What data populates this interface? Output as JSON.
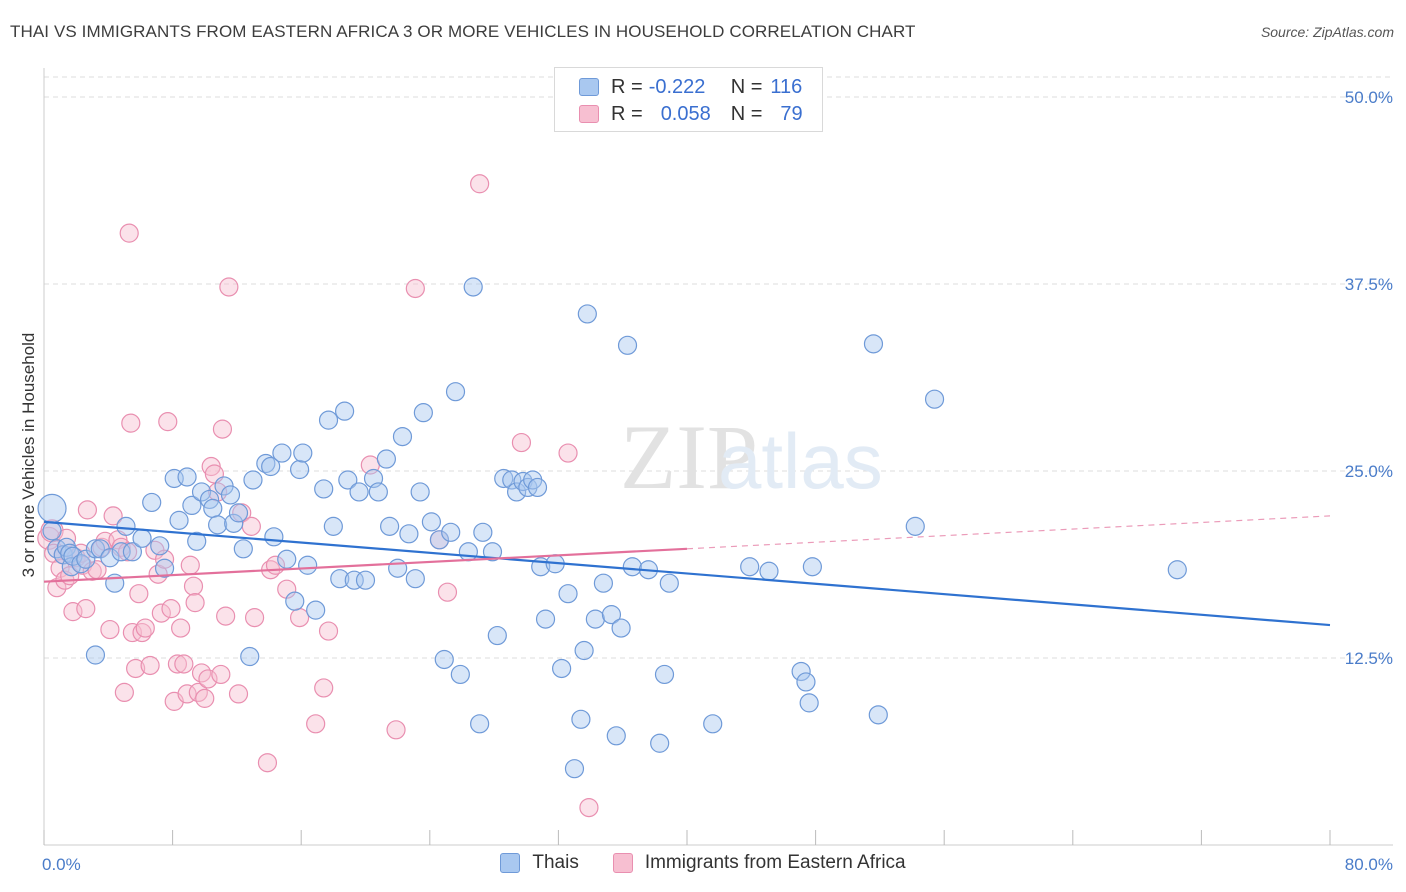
{
  "title": "THAI VS IMMIGRANTS FROM EASTERN AFRICA 3 OR MORE VEHICLES IN HOUSEHOLD CORRELATION CHART",
  "source": "Source: ZipAtlas.com",
  "watermark": {
    "zip": "ZIP",
    "atlas": "atlas"
  },
  "legend": {
    "rows": [
      {
        "r_label": "R =",
        "r_value": "-0.222",
        "n_label": "N =",
        "n_value": "116"
      },
      {
        "r_label": "R =",
        "r_value": "0.058",
        "n_label": "N =",
        "n_value": "79"
      }
    ]
  },
  "bottom_legend": {
    "series1": "Thais",
    "series2": "Immigrants from Eastern Africa"
  },
  "colors": {
    "blue_fill": "#a9c8f0",
    "blue_stroke": "#6f9ad8",
    "blue_line": "#2f72d0",
    "pink_fill": "#f7bfd1",
    "pink_stroke": "#e98fb0",
    "pink_line": "#e3709b",
    "tick": "#4a7cc9",
    "grid": "#dddddd"
  },
  "chart_data": {
    "type": "scatter",
    "title": "THAI VS IMMIGRANTS FROM EASTERN AFRICA 3 OR MORE VEHICLES IN HOUSEHOLD CORRELATION CHART",
    "xlabel": "",
    "ylabel": "3 or more Vehicles in Household",
    "xlim": [
      0,
      80
    ],
    "ylim": [
      0,
      50
    ],
    "x_tick_labels": [
      "0.0%",
      "80.0%"
    ],
    "y_ticks": [
      12.5,
      25.0,
      37.5,
      50.0
    ],
    "y_tick_labels": [
      "12.5%",
      "25.0%",
      "37.5%",
      "50.0%"
    ],
    "grid": "horizontal dashed",
    "series": [
      {
        "name": "Thais",
        "r": -0.222,
        "n": 116,
        "trend": {
          "x": [
            0,
            80
          ],
          "y": [
            21.6,
            14.7
          ],
          "dashed_from": null
        },
        "points": [
          [
            0.5,
            22.5
          ],
          [
            0.5,
            21
          ],
          [
            0.8,
            19.8
          ],
          [
            1.2,
            19.4
          ],
          [
            1.4,
            19.9
          ],
          [
            1.6,
            19.5
          ],
          [
            1.7,
            18.6
          ],
          [
            1.8,
            19.3
          ],
          [
            2.3,
            18.8
          ],
          [
            2.6,
            19.1
          ],
          [
            3.2,
            19.8
          ],
          [
            3.5,
            19.8
          ],
          [
            4.1,
            19.2
          ],
          [
            4.4,
            17.5
          ],
          [
            4.8,
            19.6
          ],
          [
            5.5,
            19.6
          ],
          [
            3.2,
            12.7
          ],
          [
            5.1,
            21.3
          ],
          [
            6.1,
            20.5
          ],
          [
            6.7,
            22.9
          ],
          [
            7.2,
            20
          ],
          [
            7.5,
            18.5
          ],
          [
            8.1,
            24.5
          ],
          [
            8.4,
            21.7
          ],
          [
            8.9,
            24.6
          ],
          [
            9.2,
            22.7
          ],
          [
            9.5,
            20.3
          ],
          [
            9.8,
            23.6
          ],
          [
            10.3,
            23.1
          ],
          [
            10.5,
            22.5
          ],
          [
            10.8,
            21.4
          ],
          [
            11.2,
            24
          ],
          [
            11.6,
            23.4
          ],
          [
            11.8,
            21.5
          ],
          [
            12.1,
            22.2
          ],
          [
            12.4,
            19.8
          ],
          [
            12.8,
            12.6
          ],
          [
            13.0,
            24.4
          ],
          [
            13.8,
            25.5
          ],
          [
            14.1,
            25.3
          ],
          [
            14.3,
            20.6
          ],
          [
            14.8,
            26.2
          ],
          [
            15.1,
            19.1
          ],
          [
            15.6,
            16.3
          ],
          [
            15.9,
            25.1
          ],
          [
            16.1,
            26.2
          ],
          [
            16.4,
            18.7
          ],
          [
            16.9,
            15.7
          ],
          [
            17.4,
            23.8
          ],
          [
            17.7,
            28.4
          ],
          [
            18.0,
            21.3
          ],
          [
            18.4,
            17.8
          ],
          [
            18.7,
            29
          ],
          [
            18.9,
            24.4
          ],
          [
            19.3,
            17.7
          ],
          [
            19.6,
            23.6
          ],
          [
            20.0,
            17.7
          ],
          [
            20.5,
            24.5
          ],
          [
            20.8,
            23.6
          ],
          [
            21.3,
            25.8
          ],
          [
            21.5,
            21.3
          ],
          [
            22.0,
            18.5
          ],
          [
            22.3,
            27.3
          ],
          [
            22.7,
            20.8
          ],
          [
            23.1,
            17.8
          ],
          [
            23.4,
            23.6
          ],
          [
            23.6,
            28.9
          ],
          [
            24.1,
            21.6
          ],
          [
            24.6,
            20.4
          ],
          [
            24.9,
            12.4
          ],
          [
            25.3,
            20.9
          ],
          [
            25.6,
            30.3
          ],
          [
            25.9,
            11.4
          ],
          [
            26.4,
            19.6
          ],
          [
            26.7,
            37.3
          ],
          [
            27.1,
            8.1
          ],
          [
            27.3,
            20.9
          ],
          [
            27.9,
            19.6
          ],
          [
            28.2,
            14
          ],
          [
            28.6,
            24.5
          ],
          [
            29.1,
            24.4
          ],
          [
            29.4,
            23.6
          ],
          [
            29.8,
            24.3
          ],
          [
            30.1,
            23.9
          ],
          [
            30.4,
            24.4
          ],
          [
            30.7,
            23.9
          ],
          [
            30.9,
            18.6
          ],
          [
            31.2,
            15.1
          ],
          [
            31.8,
            18.8
          ],
          [
            32.2,
            11.8
          ],
          [
            32.6,
            16.8
          ],
          [
            33.0,
            5.1
          ],
          [
            33.4,
            8.4
          ],
          [
            33.6,
            13
          ],
          [
            33.8,
            35.5
          ],
          [
            34.3,
            15.1
          ],
          [
            34.8,
            17.5
          ],
          [
            35.3,
            15.4
          ],
          [
            35.6,
            7.3
          ],
          [
            35.9,
            14.5
          ],
          [
            36.3,
            33.4
          ],
          [
            36.6,
            18.6
          ],
          [
            37.6,
            18.4
          ],
          [
            38.3,
            6.8
          ],
          [
            38.6,
            11.4
          ],
          [
            38.9,
            17.5
          ],
          [
            41.6,
            8.1
          ],
          [
            43.9,
            18.6
          ],
          [
            45.1,
            18.3
          ],
          [
            47.1,
            11.6
          ],
          [
            47.4,
            10.9
          ],
          [
            47.6,
            9.5
          ],
          [
            47.8,
            18.6
          ],
          [
            51.6,
            33.5
          ],
          [
            51.9,
            8.7
          ],
          [
            54.2,
            21.3
          ],
          [
            55.4,
            29.8
          ],
          [
            70.5,
            18.4
          ]
        ]
      },
      {
        "name": "Immigrants from Eastern Africa",
        "r": 0.058,
        "n": 79,
        "trend": {
          "x": [
            0,
            80
          ],
          "y": [
            17.6,
            22.0
          ],
          "solid_until": 40
        },
        "points": [
          [
            0.3,
            20.5
          ],
          [
            0.5,
            21
          ],
          [
            0.6,
            19.5
          ],
          [
            0.8,
            17.2
          ],
          [
            1.0,
            18.5
          ],
          [
            1.2,
            19.4
          ],
          [
            1.3,
            17.7
          ],
          [
            1.4,
            20.5
          ],
          [
            1.6,
            18
          ],
          [
            1.8,
            15.6
          ],
          [
            2.0,
            19.2
          ],
          [
            2.3,
            19.5
          ],
          [
            2.4,
            18.7
          ],
          [
            2.6,
            15.8
          ],
          [
            2.7,
            22.4
          ],
          [
            3.0,
            18.3
          ],
          [
            3.3,
            18.4
          ],
          [
            3.6,
            19.9
          ],
          [
            3.8,
            20.3
          ],
          [
            4.1,
            14.4
          ],
          [
            4.3,
            22
          ],
          [
            4.6,
            20.4
          ],
          [
            4.8,
            19.9
          ],
          [
            5.0,
            10.2
          ],
          [
            5.2,
            19.6
          ],
          [
            5.4,
            28.2
          ],
          [
            5.5,
            14.2
          ],
          [
            5.7,
            11.8
          ],
          [
            5.9,
            16.8
          ],
          [
            6.1,
            14.2
          ],
          [
            6.3,
            14.5
          ],
          [
            6.6,
            12
          ],
          [
            5.3,
            40.9
          ],
          [
            6.9,
            19.7
          ],
          [
            7.1,
            18.1
          ],
          [
            7.3,
            15.5
          ],
          [
            7.5,
            19.1
          ],
          [
            7.7,
            28.3
          ],
          [
            7.9,
            15.8
          ],
          [
            8.1,
            9.6
          ],
          [
            8.3,
            12.1
          ],
          [
            8.5,
            14.5
          ],
          [
            8.7,
            12.1
          ],
          [
            8.9,
            10.1
          ],
          [
            9.1,
            18.7
          ],
          [
            9.3,
            17.3
          ],
          [
            9.4,
            16.2
          ],
          [
            9.6,
            10.2
          ],
          [
            9.8,
            11.5
          ],
          [
            10.0,
            9.8
          ],
          [
            10.2,
            11.1
          ],
          [
            10.4,
            25.3
          ],
          [
            10.6,
            24.8
          ],
          [
            10.8,
            23.6
          ],
          [
            11.0,
            11.4
          ],
          [
            11.1,
            27.8
          ],
          [
            11.3,
            15.3
          ],
          [
            11.5,
            37.3
          ],
          [
            12.1,
            10.1
          ],
          [
            12.3,
            22.2
          ],
          [
            12.9,
            21.3
          ],
          [
            13.1,
            15.2
          ],
          [
            13.9,
            5.5
          ],
          [
            14.1,
            18.4
          ],
          [
            14.4,
            18.7
          ],
          [
            15.1,
            17.1
          ],
          [
            15.9,
            15.2
          ],
          [
            16.9,
            8.1
          ],
          [
            17.4,
            10.5
          ],
          [
            17.7,
            14.3
          ],
          [
            20.3,
            25.4
          ],
          [
            21.9,
            7.7
          ],
          [
            23.1,
            37.2
          ],
          [
            24.6,
            20.4
          ],
          [
            25.1,
            16.9
          ],
          [
            27.1,
            44.2
          ],
          [
            29.7,
            26.9
          ],
          [
            32.6,
            26.2
          ],
          [
            33.9,
            2.5
          ]
        ]
      }
    ]
  }
}
